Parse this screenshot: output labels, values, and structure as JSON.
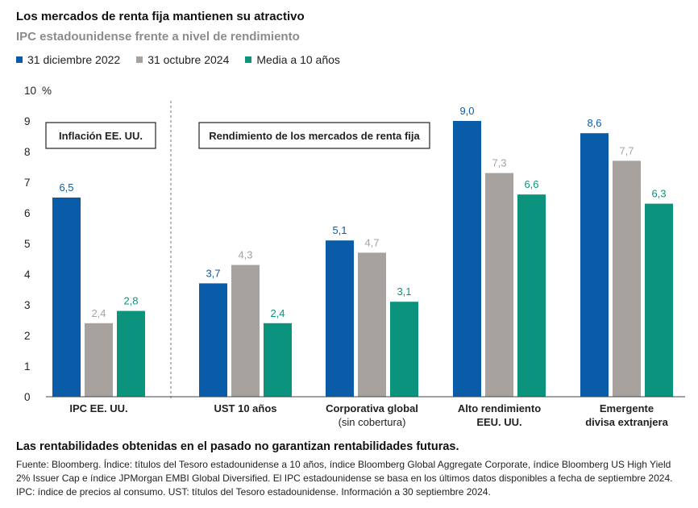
{
  "title": "Los mercados de renta fija mantienen su atractivo",
  "subtitle": "IPC estadounidense frente a nivel de rendimiento",
  "legend": [
    {
      "label": "31 diciembre 2022",
      "color": "#0a5ca8"
    },
    {
      "label": "31 octubre 2024",
      "color": "#a8a29e"
    },
    {
      "label": "Media a 10 años",
      "color": "#0c937d"
    }
  ],
  "chart_data": {
    "type": "bar",
    "ylabel": "%",
    "ylim": [
      0,
      10
    ],
    "yticks": [
      "0",
      "1",
      "2",
      "3",
      "4",
      "5",
      "6",
      "7",
      "8",
      "9",
      "10"
    ],
    "categories": [
      {
        "line1": "IPC EE. UU.",
        "line2": ""
      },
      {
        "line1": "UST 10 años",
        "line2": ""
      },
      {
        "line1": "Corporativa global",
        "line2": "(sin cobertura)"
      },
      {
        "line1": "Alto rendimiento",
        "line2": "EEU. UU."
      },
      {
        "line1": "Emergente",
        "line2": "divisa extranjera"
      }
    ],
    "series": [
      {
        "name": "31 diciembre 2022",
        "values": [
          6.5,
          3.7,
          5.1,
          9.0,
          8.6
        ],
        "labels": [
          "6,5",
          "3,7",
          "5,1",
          "9,0",
          "8,6"
        ],
        "color": "#0a5ca8",
        "label_color": "#0a5ca8"
      },
      {
        "name": "31 octubre 2024",
        "values": [
          2.4,
          4.3,
          4.7,
          7.3,
          7.7
        ],
        "labels": [
          "2,4",
          "4,3",
          "4,7",
          "7,3",
          "7,7"
        ],
        "color": "#a8a29e",
        "label_color": "#a8a29e"
      },
      {
        "name": "Media a 10 años",
        "values": [
          2.8,
          2.4,
          3.1,
          6.6,
          6.3
        ],
        "labels": [
          "2,8",
          "2,4",
          "3,1",
          "6,6",
          "6,3"
        ],
        "color": "#0c937d",
        "label_color": "#0c937d"
      }
    ],
    "annotations": {
      "left_box": "Inflación EE. UU.",
      "right_box": "Rendimiento de los mercados de renta fija"
    },
    "grid": false
  },
  "disclaimer": "Las rentabilidades obtenidas en el pasado no garantizan rentabilidades futuras.",
  "source": "Fuente: Bloomberg. Índice: títulos del Tesoro estadounidense a 10 años, índice Bloomberg Global Aggregate Corporate, índice Bloomberg US High Yield 2% Issuer Cap e índice JPMorgan EMBI Global Diversified. El IPC estadounidense se basa en los últimos datos disponibles a fecha de septiembre 2024. IPC: índice de precios al consumo. UST: títulos del Tesoro estadounidense. Información a 30 septiembre 2024."
}
